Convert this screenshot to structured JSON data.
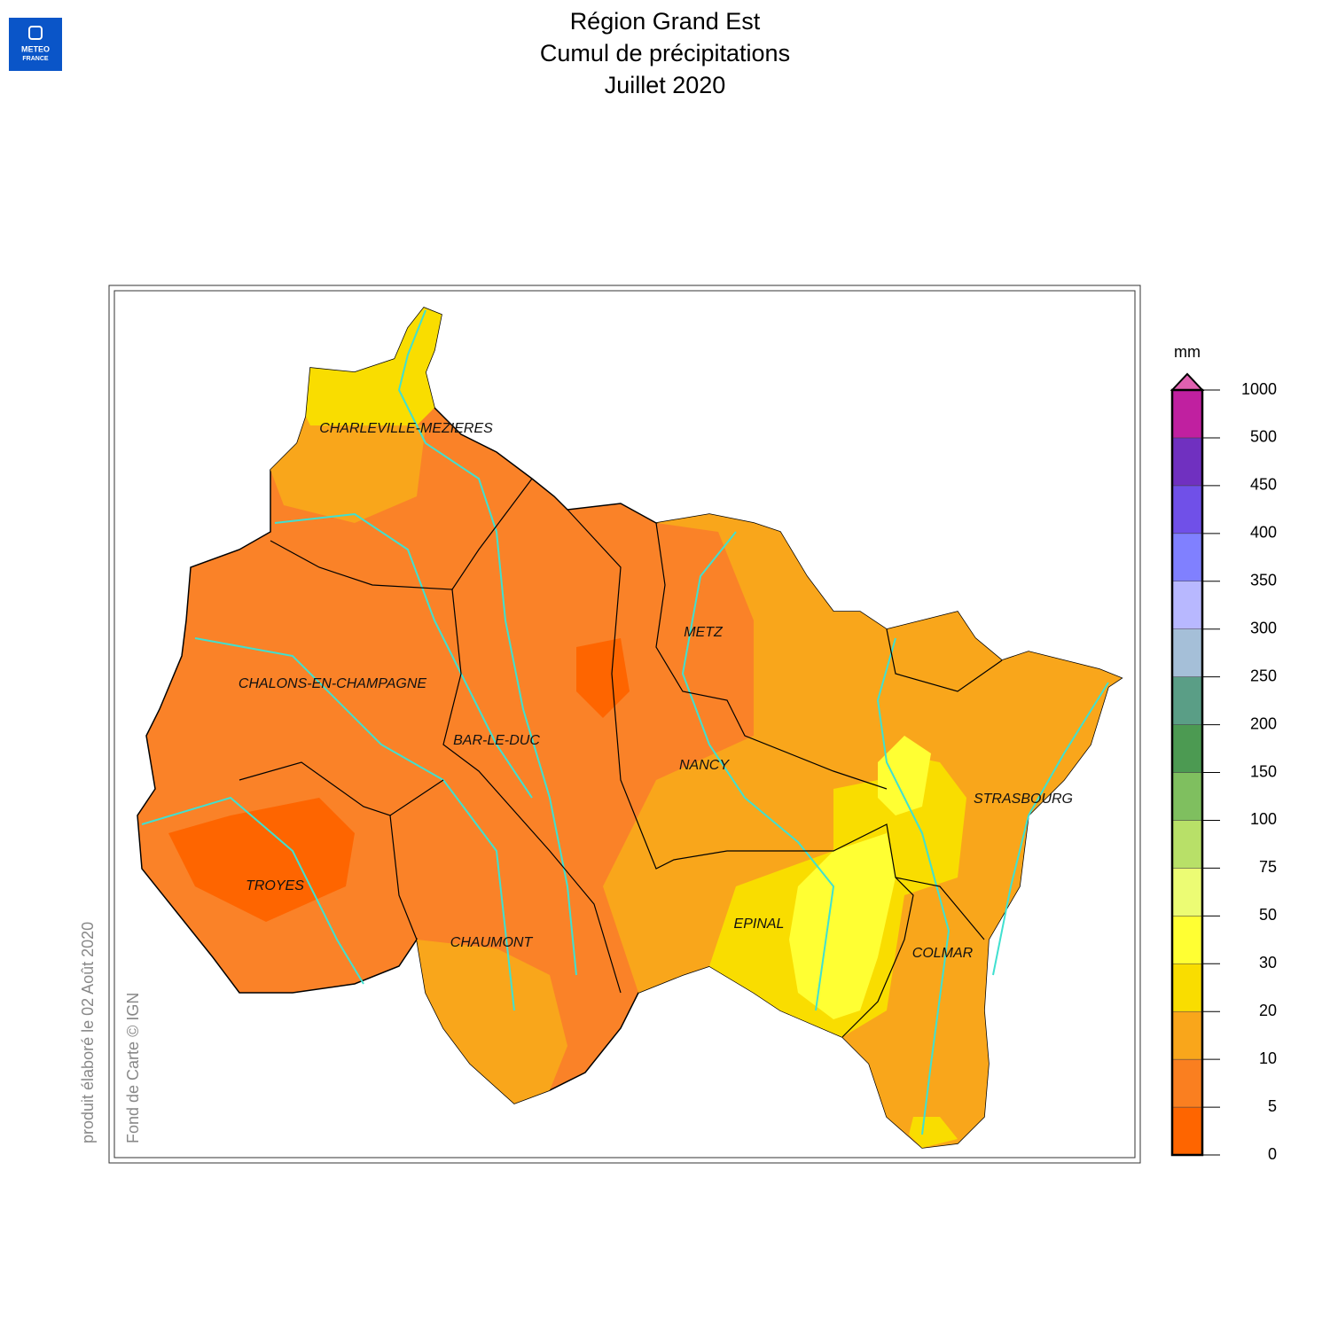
{
  "header": {
    "title_lines": [
      "Région Grand Est",
      "Cumul de précipitations",
      "Juillet 2020"
    ],
    "logo": [
      "METEO",
      "FRANCE"
    ]
  },
  "map": {
    "cities": [
      "CHARLEVILLE-MEZIERES",
      "METZ",
      "CHALONS-EN-CHAMPAGNE",
      "BAR-LE-DUC",
      "NANCY",
      "STRASBOURG",
      "TROYES",
      "EPINAL",
      "CHAUMONT",
      "COLMAR"
    ]
  },
  "legend": {
    "unit": "mm",
    "ticks": [
      0,
      5,
      10,
      20,
      30,
      50,
      75,
      100,
      150,
      200,
      250,
      300,
      350,
      400,
      450,
      500,
      1000
    ],
    "colors": [
      "#fe6500",
      "#fa7f20",
      "#f9a61b",
      "#f9dd00",
      "#ffff33",
      "#ecfc74",
      "#b8e068",
      "#7fbf5f",
      "#4c9a52",
      "#5a9e86",
      "#a5bfd8",
      "#b8b8ff",
      "#8080ff",
      "#7050e8",
      "#7030c0",
      "#c020a0"
    ],
    "arrow_color": "#e060b0"
  },
  "credits": [
    "produit élaboré le 02 Août 2020",
    "Fond de Carte © IGN"
  ]
}
